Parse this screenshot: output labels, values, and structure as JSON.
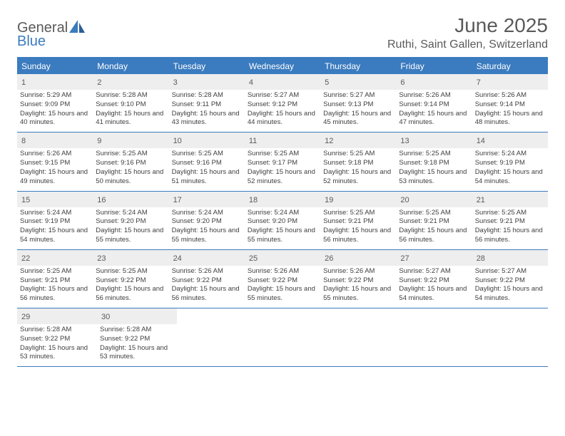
{
  "logo": {
    "line1": "General",
    "line2": "Blue"
  },
  "title": "June 2025",
  "location": "Ruthi, Saint Gallen, Switzerland",
  "colors": {
    "header_bg": "#3b7bbf",
    "header_text": "#ffffff",
    "daynum_bg": "#eeeeee",
    "border": "#3b7bbf",
    "text_gray": "#5a5a5a",
    "logo_blue": "#3b7bbf"
  },
  "daynames": [
    "Sunday",
    "Monday",
    "Tuesday",
    "Wednesday",
    "Thursday",
    "Friday",
    "Saturday"
  ],
  "weeks": [
    [
      {
        "num": "1",
        "sunrise": "Sunrise: 5:29 AM",
        "sunset": "Sunset: 9:09 PM",
        "daylight": "Daylight: 15 hours and 40 minutes."
      },
      {
        "num": "2",
        "sunrise": "Sunrise: 5:28 AM",
        "sunset": "Sunset: 9:10 PM",
        "daylight": "Daylight: 15 hours and 41 minutes."
      },
      {
        "num": "3",
        "sunrise": "Sunrise: 5:28 AM",
        "sunset": "Sunset: 9:11 PM",
        "daylight": "Daylight: 15 hours and 43 minutes."
      },
      {
        "num": "4",
        "sunrise": "Sunrise: 5:27 AM",
        "sunset": "Sunset: 9:12 PM",
        "daylight": "Daylight: 15 hours and 44 minutes."
      },
      {
        "num": "5",
        "sunrise": "Sunrise: 5:27 AM",
        "sunset": "Sunset: 9:13 PM",
        "daylight": "Daylight: 15 hours and 45 minutes."
      },
      {
        "num": "6",
        "sunrise": "Sunrise: 5:26 AM",
        "sunset": "Sunset: 9:14 PM",
        "daylight": "Daylight: 15 hours and 47 minutes."
      },
      {
        "num": "7",
        "sunrise": "Sunrise: 5:26 AM",
        "sunset": "Sunset: 9:14 PM",
        "daylight": "Daylight: 15 hours and 48 minutes."
      }
    ],
    [
      {
        "num": "8",
        "sunrise": "Sunrise: 5:26 AM",
        "sunset": "Sunset: 9:15 PM",
        "daylight": "Daylight: 15 hours and 49 minutes."
      },
      {
        "num": "9",
        "sunrise": "Sunrise: 5:25 AM",
        "sunset": "Sunset: 9:16 PM",
        "daylight": "Daylight: 15 hours and 50 minutes."
      },
      {
        "num": "10",
        "sunrise": "Sunrise: 5:25 AM",
        "sunset": "Sunset: 9:16 PM",
        "daylight": "Daylight: 15 hours and 51 minutes."
      },
      {
        "num": "11",
        "sunrise": "Sunrise: 5:25 AM",
        "sunset": "Sunset: 9:17 PM",
        "daylight": "Daylight: 15 hours and 52 minutes."
      },
      {
        "num": "12",
        "sunrise": "Sunrise: 5:25 AM",
        "sunset": "Sunset: 9:18 PM",
        "daylight": "Daylight: 15 hours and 52 minutes."
      },
      {
        "num": "13",
        "sunrise": "Sunrise: 5:25 AM",
        "sunset": "Sunset: 9:18 PM",
        "daylight": "Daylight: 15 hours and 53 minutes."
      },
      {
        "num": "14",
        "sunrise": "Sunrise: 5:24 AM",
        "sunset": "Sunset: 9:19 PM",
        "daylight": "Daylight: 15 hours and 54 minutes."
      }
    ],
    [
      {
        "num": "15",
        "sunrise": "Sunrise: 5:24 AM",
        "sunset": "Sunset: 9:19 PM",
        "daylight": "Daylight: 15 hours and 54 minutes."
      },
      {
        "num": "16",
        "sunrise": "Sunrise: 5:24 AM",
        "sunset": "Sunset: 9:20 PM",
        "daylight": "Daylight: 15 hours and 55 minutes."
      },
      {
        "num": "17",
        "sunrise": "Sunrise: 5:24 AM",
        "sunset": "Sunset: 9:20 PM",
        "daylight": "Daylight: 15 hours and 55 minutes."
      },
      {
        "num": "18",
        "sunrise": "Sunrise: 5:24 AM",
        "sunset": "Sunset: 9:20 PM",
        "daylight": "Daylight: 15 hours and 55 minutes."
      },
      {
        "num": "19",
        "sunrise": "Sunrise: 5:25 AM",
        "sunset": "Sunset: 9:21 PM",
        "daylight": "Daylight: 15 hours and 56 minutes."
      },
      {
        "num": "20",
        "sunrise": "Sunrise: 5:25 AM",
        "sunset": "Sunset: 9:21 PM",
        "daylight": "Daylight: 15 hours and 56 minutes."
      },
      {
        "num": "21",
        "sunrise": "Sunrise: 5:25 AM",
        "sunset": "Sunset: 9:21 PM",
        "daylight": "Daylight: 15 hours and 56 minutes."
      }
    ],
    [
      {
        "num": "22",
        "sunrise": "Sunrise: 5:25 AM",
        "sunset": "Sunset: 9:21 PM",
        "daylight": "Daylight: 15 hours and 56 minutes."
      },
      {
        "num": "23",
        "sunrise": "Sunrise: 5:25 AM",
        "sunset": "Sunset: 9:22 PM",
        "daylight": "Daylight: 15 hours and 56 minutes."
      },
      {
        "num": "24",
        "sunrise": "Sunrise: 5:26 AM",
        "sunset": "Sunset: 9:22 PM",
        "daylight": "Daylight: 15 hours and 56 minutes."
      },
      {
        "num": "25",
        "sunrise": "Sunrise: 5:26 AM",
        "sunset": "Sunset: 9:22 PM",
        "daylight": "Daylight: 15 hours and 55 minutes."
      },
      {
        "num": "26",
        "sunrise": "Sunrise: 5:26 AM",
        "sunset": "Sunset: 9:22 PM",
        "daylight": "Daylight: 15 hours and 55 minutes."
      },
      {
        "num": "27",
        "sunrise": "Sunrise: 5:27 AM",
        "sunset": "Sunset: 9:22 PM",
        "daylight": "Daylight: 15 hours and 54 minutes."
      },
      {
        "num": "28",
        "sunrise": "Sunrise: 5:27 AM",
        "sunset": "Sunset: 9:22 PM",
        "daylight": "Daylight: 15 hours and 54 minutes."
      }
    ],
    [
      {
        "num": "29",
        "sunrise": "Sunrise: 5:28 AM",
        "sunset": "Sunset: 9:22 PM",
        "daylight": "Daylight: 15 hours and 53 minutes."
      },
      {
        "num": "30",
        "sunrise": "Sunrise: 5:28 AM",
        "sunset": "Sunset: 9:22 PM",
        "daylight": "Daylight: 15 hours and 53 minutes."
      },
      null,
      null,
      null,
      null,
      null
    ]
  ]
}
